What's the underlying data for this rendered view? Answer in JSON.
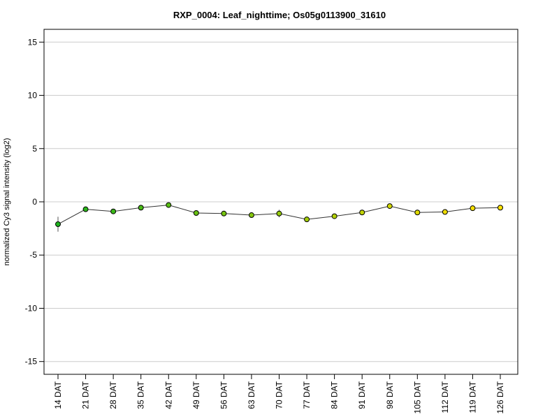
{
  "chart_data": {
    "type": "line",
    "title": "RXP_0004: Leaf_nighttime; Os05g0113900_31610",
    "ylabel": "normalized Cy3 signal intensity (log2)",
    "xlabel": "",
    "ylim": [
      -16.2,
      16.2
    ],
    "yticks": [
      15,
      10,
      5,
      0,
      -5,
      -10,
      -15
    ],
    "ytick_labels": [
      "15",
      "10",
      "5",
      "0",
      "-5",
      "-10",
      "-15"
    ],
    "grid": true,
    "categories": [
      "14 DAT",
      "21 DAT",
      "28 DAT",
      "35 DAT",
      "42 DAT",
      "49 DAT",
      "56 DAT",
      "63 DAT",
      "70 DAT",
      "77 DAT",
      "84 DAT",
      "91 DAT",
      "98 DAT",
      "105 DAT",
      "112 DAT",
      "119 DAT",
      "126 DAT"
    ],
    "values": [
      -2.1,
      -0.7,
      -0.9,
      -0.55,
      -0.3,
      -1.05,
      -1.1,
      -1.25,
      -1.1,
      -1.65,
      -1.35,
      -1.0,
      -0.4,
      -1.0,
      -0.95,
      -0.6,
      -0.55
    ],
    "error": [
      0.7,
      0.15,
      0.1,
      0.15,
      0.1,
      0.1,
      0.1,
      0.1,
      0.35,
      0.1,
      0.1,
      0.1,
      0.15,
      0.1,
      0.1,
      0.1,
      0.1
    ],
    "point_colors": [
      "#1db31d",
      "#2bb51a",
      "#3ab818",
      "#49bb16",
      "#58be14",
      "#67c112",
      "#76c410",
      "#85c70e",
      "#94ca0c",
      "#a3cd0a",
      "#b2d008",
      "#c1d306",
      "#d0d604",
      "#dfd902",
      "#eedc00",
      "#f7e000",
      "#ffe300"
    ],
    "line_color": "#333333"
  }
}
